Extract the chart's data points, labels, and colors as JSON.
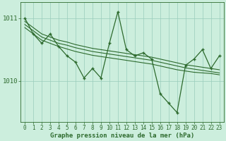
{
  "title": "Graphe pression niveau de la mer (hPa)",
  "x_hours": [
    0,
    1,
    2,
    3,
    4,
    5,
    6,
    7,
    8,
    9,
    10,
    11,
    12,
    13,
    14,
    15,
    16,
    17,
    18,
    19,
    20,
    21,
    22,
    23
  ],
  "main_line": [
    1011.0,
    1010.75,
    1010.6,
    1010.75,
    1010.55,
    1010.4,
    1010.3,
    1010.05,
    1010.2,
    1010.05,
    1010.6,
    1011.1,
    1010.5,
    1010.4,
    1010.45,
    1010.35,
    1009.8,
    1009.65,
    1009.5,
    1010.25,
    1010.35,
    1010.5,
    1010.2,
    1010.4
  ],
  "smooth_line1": [
    1010.95,
    1010.85,
    1010.75,
    1010.7,
    1010.65,
    1010.62,
    1010.58,
    1010.55,
    1010.52,
    1010.5,
    1010.48,
    1010.46,
    1010.44,
    1010.42,
    1010.4,
    1010.38,
    1010.35,
    1010.32,
    1010.29,
    1010.26,
    1010.24,
    1010.22,
    1010.2,
    1010.18
  ],
  "smooth_line2": [
    1010.9,
    1010.8,
    1010.7,
    1010.65,
    1010.6,
    1010.57,
    1010.53,
    1010.5,
    1010.47,
    1010.45,
    1010.43,
    1010.41,
    1010.39,
    1010.37,
    1010.35,
    1010.33,
    1010.3,
    1010.27,
    1010.24,
    1010.21,
    1010.19,
    1010.17,
    1010.15,
    1010.13
  ],
  "smooth_line3": [
    1010.85,
    1010.75,
    1010.65,
    1010.6,
    1010.55,
    1010.51,
    1010.47,
    1010.44,
    1010.41,
    1010.39,
    1010.37,
    1010.35,
    1010.33,
    1010.31,
    1010.29,
    1010.27,
    1010.24,
    1010.21,
    1010.18,
    1010.16,
    1010.14,
    1010.13,
    1010.12,
    1010.1
  ],
  "line_color": "#2d6a2d",
  "bg_color": "#cceedd",
  "grid_color": "#99ccbb",
  "ylim_min": 1009.35,
  "ylim_max": 1011.25,
  "yticks": [
    1010,
    1011
  ],
  "tick_fontsize": 6.5,
  "title_fontsize": 6.5
}
